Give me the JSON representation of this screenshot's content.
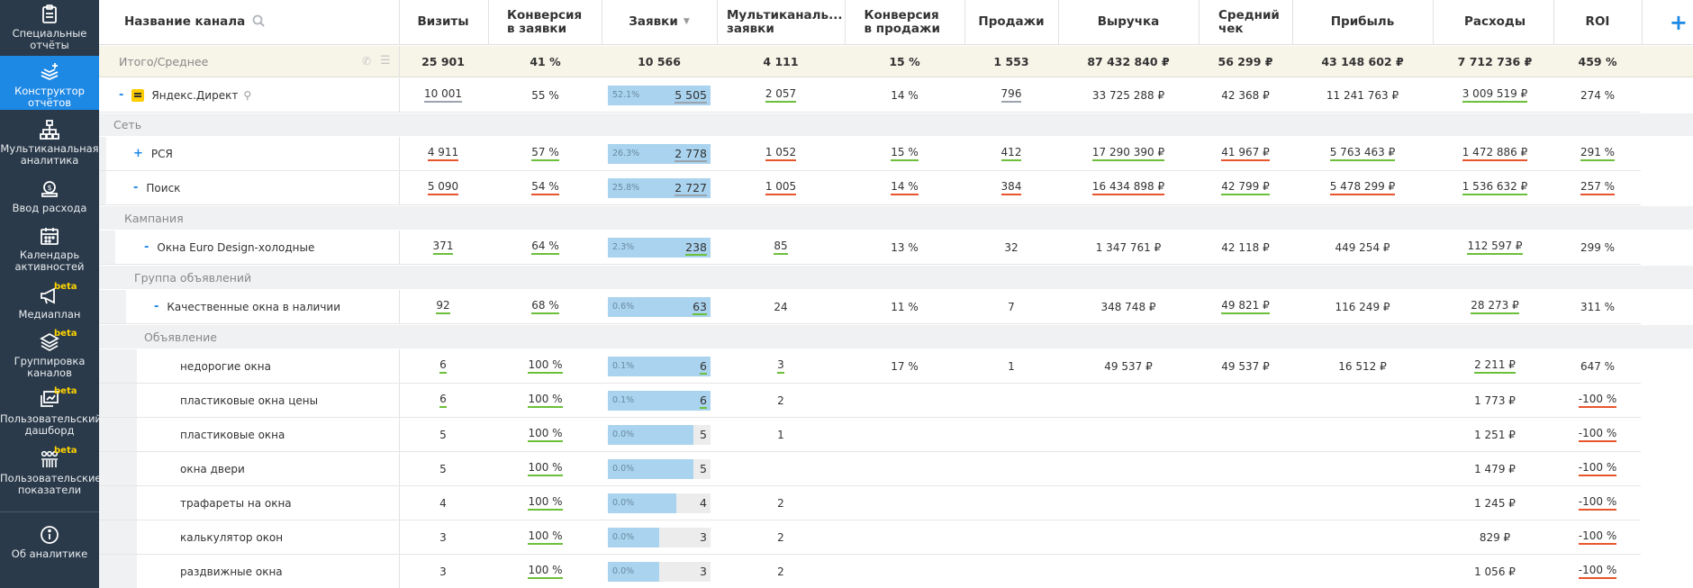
{
  "sidebar": {
    "items": [
      {
        "label": "Специальные отчёты",
        "icon": "clipboard-icon",
        "beta": false
      },
      {
        "label": "Конструктор отчётов",
        "icon": "layers-plus-icon",
        "beta": false,
        "active": true
      },
      {
        "label": "Мультиканальная аналитика",
        "icon": "hierarchy-icon",
        "beta": false
      },
      {
        "label": "Ввод расхода",
        "icon": "money-bag-icon",
        "beta": false
      },
      {
        "label": "Календарь активностей",
        "icon": "calendar-icon",
        "beta": false
      },
      {
        "label": "Медиаплан",
        "icon": "megaphone-icon",
        "beta": true
      },
      {
        "label": "Группировка каналов",
        "icon": "stack-icon",
        "beta": true
      },
      {
        "label": "Пользовательский дашборд",
        "icon": "dashboard-icon",
        "beta": true
      },
      {
        "label": "Пользовательские показатели",
        "icon": "people-icon",
        "beta": true
      },
      {
        "label": "Об аналитике",
        "icon": "info-icon",
        "beta": false
      }
    ],
    "beta_label": "beta"
  },
  "header": {
    "channel_name": "Название канала",
    "visits": "Визиты",
    "conv_leads": "Конверсия в заявки",
    "leads": "Заявки",
    "multichannel": "Мультиканаль... заявки",
    "conv_sales": "Конверсия в продажи",
    "sales": "Продажи",
    "revenue": "Выручка",
    "avg_check": "Средний чек",
    "profit": "Прибыль",
    "expenses": "Расходы",
    "roi": "ROI",
    "sort_indicator": "▼",
    "add_symbol": "+"
  },
  "total": {
    "label": "Итого/Среднее",
    "visits": "25 901",
    "conv_leads": "41 %",
    "leads": "10 566",
    "multichannel": "4 111",
    "conv_sales": "15 %",
    "sales": "1 553",
    "revenue": "87 432 840 ₽",
    "avg_check": "56 299 ₽",
    "profit": "43 148 602 ₽",
    "expenses": "7 712 736 ₽",
    "roi": "459 %"
  },
  "sections": {
    "network": "Сеть",
    "campaign": "Кампания",
    "ad_group": "Группа объявлений",
    "ad": "Объявление"
  },
  "rows": {
    "yandex": {
      "toggle": "-",
      "name": "Яндекс.Директ",
      "visits": "10 001",
      "conv_leads": "55 %",
      "lead_pct": "52.1%",
      "leads": "5 505",
      "multichannel": "2 057",
      "conv_sales": "14 %",
      "sales": "796",
      "revenue": "33 725 288 ₽",
      "avg_check": "42 368 ₽",
      "profit": "11 241 763 ₽",
      "expenses": "3 009 519 ₽",
      "roi": "274 %",
      "fill": 52.1
    },
    "rsya": {
      "toggle": "+",
      "name": "РСЯ",
      "visits": "4 911",
      "conv_leads": "57 %",
      "lead_pct": "26.3%",
      "leads": "2 778",
      "multichannel": "1 052",
      "conv_sales": "15 %",
      "sales": "412",
      "revenue": "17 290 390 ₽",
      "avg_check": "41 967 ₽",
      "profit": "5 763 463 ₽",
      "expenses": "1 472 886 ₽",
      "roi": "291 %",
      "fill": 26.3
    },
    "search": {
      "toggle": "-",
      "name": "Поиск",
      "visits": "5 090",
      "conv_leads": "54 %",
      "lead_pct": "25.8%",
      "leads": "2 727",
      "multichannel": "1 005",
      "conv_sales": "14 %",
      "sales": "384",
      "revenue": "16 434 898 ₽",
      "avg_check": "42 799 ₽",
      "profit": "5 478 299 ₽",
      "expenses": "1 536 632 ₽",
      "roi": "257 %",
      "fill": 25.8
    },
    "campaign1": {
      "toggle": "-",
      "name": "Окна Euro Design-холодные",
      "visits": "371",
      "conv_leads": "64 %",
      "lead_pct": "2.3%",
      "leads": "238",
      "multichannel": "85",
      "conv_sales": "13 %",
      "sales": "32",
      "revenue": "1 347 761 ₽",
      "avg_check": "42 118 ₽",
      "profit": "449 254 ₽",
      "expenses": "112 597 ₽",
      "roi": "299 %",
      "fill": 2.3
    },
    "group1": {
      "toggle": "-",
      "name": "Качественные окна в наличии",
      "visits": "92",
      "conv_leads": "68 %",
      "lead_pct": "0.6%",
      "leads": "63",
      "multichannel": "24",
      "conv_sales": "11 %",
      "sales": "7",
      "revenue": "348 748 ₽",
      "avg_check": "49 821 ₽",
      "profit": "116 249 ₽",
      "expenses": "28 273 ₽",
      "roi": "311 %",
      "fill": 0.6
    }
  },
  "ads": [
    {
      "name": "недорогие окна",
      "visits": "6",
      "conv_leads": "100 %",
      "lead_pct": "0.1%",
      "leads": "6",
      "multichannel": "3",
      "conv_sales": "17 %",
      "sales": "1",
      "revenue": "49 537 ₽",
      "avg_check": "49 537 ₽",
      "profit": "16 512 ₽",
      "expenses": "2 211 ₽",
      "roi": "647 %",
      "fill": 0.1
    },
    {
      "name": "пластиковые окна цены",
      "visits": "6",
      "conv_leads": "100 %",
      "lead_pct": "0.1%",
      "leads": "6",
      "multichannel": "2",
      "conv_sales": "",
      "sales": "",
      "revenue": "",
      "avg_check": "",
      "profit": "",
      "expenses": "1 773 ₽",
      "roi": "-100 %",
      "fill": 0.1
    },
    {
      "name": "пластиковые окна",
      "visits": "5",
      "conv_leads": "100 %",
      "lead_pct": "0.0%",
      "leads": "5",
      "multichannel": "1",
      "conv_sales": "",
      "sales": "",
      "revenue": "",
      "avg_check": "",
      "profit": "",
      "expenses": "1 251 ₽",
      "roi": "-100 %",
      "fill": 0.0
    },
    {
      "name": "окна двери",
      "visits": "5",
      "conv_leads": "100 %",
      "lead_pct": "0.0%",
      "leads": "5",
      "multichannel": "",
      "conv_sales": "",
      "sales": "",
      "revenue": "",
      "avg_check": "",
      "profit": "",
      "expenses": "1 479 ₽",
      "roi": "-100 %",
      "fill": 0.0
    },
    {
      "name": "трафареты на окна",
      "visits": "4",
      "conv_leads": "100 %",
      "lead_pct": "0.0%",
      "leads": "4",
      "multichannel": "2",
      "conv_sales": "",
      "sales": "",
      "revenue": "",
      "avg_check": "",
      "profit": "",
      "expenses": "1 245 ₽",
      "roi": "-100 %",
      "fill": 0.0
    },
    {
      "name": "калькулятор окон",
      "visits": "3",
      "conv_leads": "100 %",
      "lead_pct": "0.0%",
      "leads": "3",
      "multichannel": "2",
      "conv_sales": "",
      "sales": "",
      "revenue": "",
      "avg_check": "",
      "profit": "",
      "expenses": "829 ₽",
      "roi": "-100 %",
      "fill": 0.0
    },
    {
      "name": "раздвижные окна",
      "visits": "3",
      "conv_leads": "100 %",
      "lead_pct": "0.0%",
      "leads": "3",
      "multichannel": "2",
      "conv_sales": "",
      "sales": "",
      "revenue": "",
      "avg_check": "",
      "profit": "",
      "expenses": "1 056 ₽",
      "roi": "-100 %",
      "fill": 0.0
    }
  ]
}
